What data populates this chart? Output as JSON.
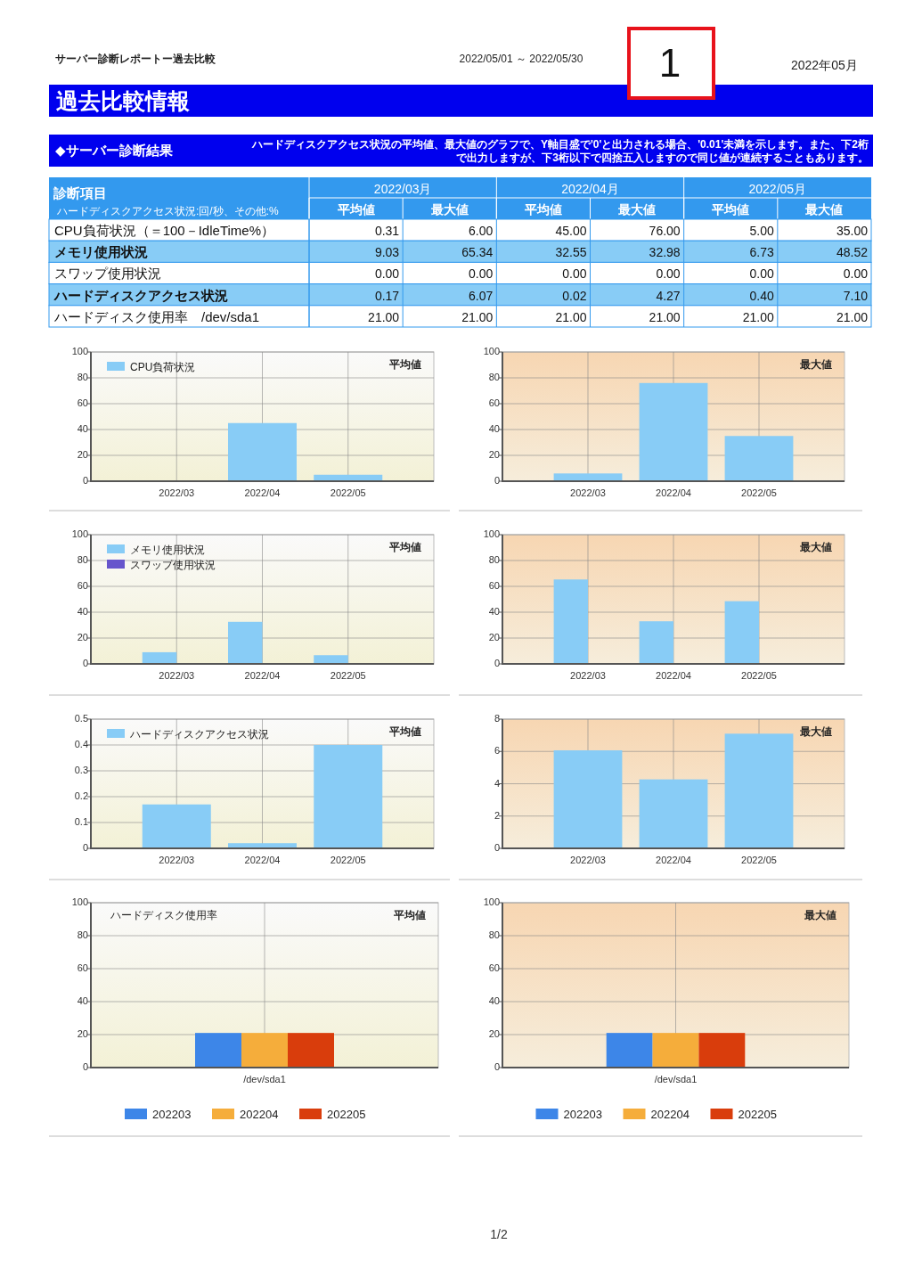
{
  "chart_data": [
    {
      "type": "other",
      "title": "過去比較情報",
      "annotations": [
        "サーバー診断レポートー過去比較",
        "2022/05/01 ～ 2022/05/30",
        "2022年05月",
        "1",
        "1/2"
      ]
    },
    {
      "type": "other",
      "title": "◆サーバー診断結果",
      "subtitle": "ハードディスクアクセス状況の平均値、最大値のグラフで、Y軸目盛で'0'と出力される場合、'0.01'未満を示します。また、下2桁で出力しますが、下3桁以下で四捨五入しますので同じ値が連続することもあります。",
      "xlabel": "診断項目",
      "ylabel": "ハードディスクアクセス状況:回/秒、その他:%",
      "annotations": [
        "2022/03月",
        "2022/04月",
        "2022/05月"
      ],
      "categories": [
        "平均値",
        "最大値",
        "平均値",
        "最大値",
        "平均値",
        "最大値"
      ],
      "series": [
        {
          "name": "CPU負荷状況（＝100－IdleTime%）",
          "values": [
            0.31,
            6.0,
            45.0,
            76.0,
            5.0,
            35.0
          ],
          "value_labels": [
            "0.31",
            "6.00",
            "45.00",
            "76.00",
            "5.00",
            "35.00"
          ]
        },
        {
          "name": "メモリ使用状況",
          "values": [
            9.03,
            65.34,
            32.55,
            32.98,
            6.73,
            48.52
          ],
          "value_labels": [
            "9.03",
            "65.34",
            "32.55",
            "32.98",
            "6.73",
            "48.52"
          ]
        },
        {
          "name": "スワップ使用状況",
          "values": [
            0,
            0,
            0,
            0,
            0,
            0
          ],
          "value_labels": [
            "0.00",
            "0.00",
            "0.00",
            "0.00",
            "0.00",
            "0.00"
          ]
        },
        {
          "name": "ハードディスクアクセス状況",
          "values": [
            0.17,
            6.07,
            0.02,
            4.27,
            0.4,
            7.1
          ],
          "value_labels": [
            "0.17",
            "6.07",
            "0.02",
            "4.27",
            "0.40",
            "7.10"
          ]
        },
        {
          "name": "ハードディスク使用率　/dev/sda1",
          "values": [
            21,
            21,
            21,
            21,
            21,
            21
          ],
          "value_labels": [
            "21.00",
            "21.00",
            "21.00",
            "21.00",
            "21.00",
            "21.00"
          ]
        }
      ]
    },
    {
      "type": "bar",
      "categories": [
        "2022/03",
        "2022/04",
        "2022/05"
      ],
      "series": [
        {
          "name": "CPU負荷状況",
          "color": "#88ccf6",
          "values": [
            0.31,
            45.0,
            5.0
          ]
        }
      ],
      "ylim": [
        0,
        100
      ],
      "yticks": [
        0,
        20,
        40,
        60,
        80,
        100
      ],
      "grid": true,
      "legend": "top left",
      "annotations": [
        "平均値"
      ]
    },
    {
      "type": "bar",
      "categories": [
        "2022/03",
        "2022/04",
        "2022/05"
      ],
      "series": [
        {
          "color": "#88ccf6",
          "values": [
            6.0,
            76.0,
            35.0
          ]
        }
      ],
      "ylim": [
        0,
        100
      ],
      "yticks": [
        0,
        20,
        40,
        60,
        80,
        100
      ],
      "grid": true,
      "annotations": [
        "最大値"
      ]
    },
    {
      "type": "bar",
      "categories": [
        "2022/03",
        "2022/04",
        "2022/05"
      ],
      "series": [
        {
          "name": "メモリ使用状況",
          "color": "#88ccf6",
          "values": [
            9.03,
            32.55,
            6.73
          ]
        },
        {
          "name": "スワップ使用状況",
          "color": "#6655cc",
          "values": [
            0,
            0,
            0
          ]
        }
      ],
      "ylim": [
        0,
        100
      ],
      "yticks": [
        0,
        20,
        40,
        60,
        80,
        100
      ],
      "grid": true,
      "legend": "top left",
      "annotations": [
        "平均値"
      ]
    },
    {
      "type": "bar",
      "categories": [
        "2022/03",
        "2022/04",
        "2022/05"
      ],
      "series": [
        {
          "color": "#88ccf6",
          "values": [
            65.34,
            32.98,
            48.52
          ]
        },
        {
          "color": "#6655cc",
          "values": [
            0,
            0,
            0
          ]
        }
      ],
      "ylim": [
        0,
        100
      ],
      "yticks": [
        0,
        20,
        40,
        60,
        80,
        100
      ],
      "grid": true,
      "annotations": [
        "最大値"
      ]
    },
    {
      "type": "bar",
      "categories": [
        "2022/03",
        "2022/04",
        "2022/05"
      ],
      "series": [
        {
          "name": "ハードディスクアクセス状況",
          "color": "#88ccf6",
          "values": [
            0.17,
            0.02,
            0.4
          ]
        }
      ],
      "ylim": [
        0,
        0.5
      ],
      "yticks": [
        0,
        0.1,
        0.2,
        0.3,
        0.4,
        0.5
      ],
      "grid": true,
      "legend": "top left",
      "annotations": [
        "平均値"
      ]
    },
    {
      "type": "bar",
      "categories": [
        "2022/03",
        "2022/04",
        "2022/05"
      ],
      "series": [
        {
          "color": "#88ccf6",
          "values": [
            6.07,
            4.27,
            7.1
          ]
        }
      ],
      "ylim": [
        0,
        8
      ],
      "yticks": [
        0,
        2,
        4,
        6,
        8
      ],
      "grid": true,
      "annotations": [
        "最大値"
      ]
    },
    {
      "type": "bar",
      "title": "ハードディスク使用率",
      "categories": [
        "/dev/sda1"
      ],
      "series": [
        {
          "name": "202203",
          "color": "#3d86e8",
          "values": [
            21.0
          ]
        },
        {
          "name": "202204",
          "color": "#f5ad3b",
          "values": [
            21.0
          ]
        },
        {
          "name": "202205",
          "color": "#d93d0c",
          "values": [
            21.0
          ]
        }
      ],
      "ylim": [
        0,
        100
      ],
      "yticks": [
        0,
        20,
        40,
        60,
        80,
        100
      ],
      "grid": true,
      "legend": "bottom",
      "annotations": [
        "平均値"
      ]
    },
    {
      "type": "bar",
      "categories": [
        "/dev/sda1"
      ],
      "series": [
        {
          "name": "202203",
          "color": "#3d86e8",
          "values": [
            21.0
          ]
        },
        {
          "name": "202204",
          "color": "#f5ad3b",
          "values": [
            21.0
          ]
        },
        {
          "name": "202205",
          "color": "#d93d0c",
          "values": [
            21.0
          ]
        }
      ],
      "ylim": [
        0,
        100
      ],
      "yticks": [
        0,
        20,
        40,
        60,
        80,
        100
      ],
      "grid": true,
      "legend": "bottom",
      "annotations": [
        "最大値"
      ]
    }
  ]
}
